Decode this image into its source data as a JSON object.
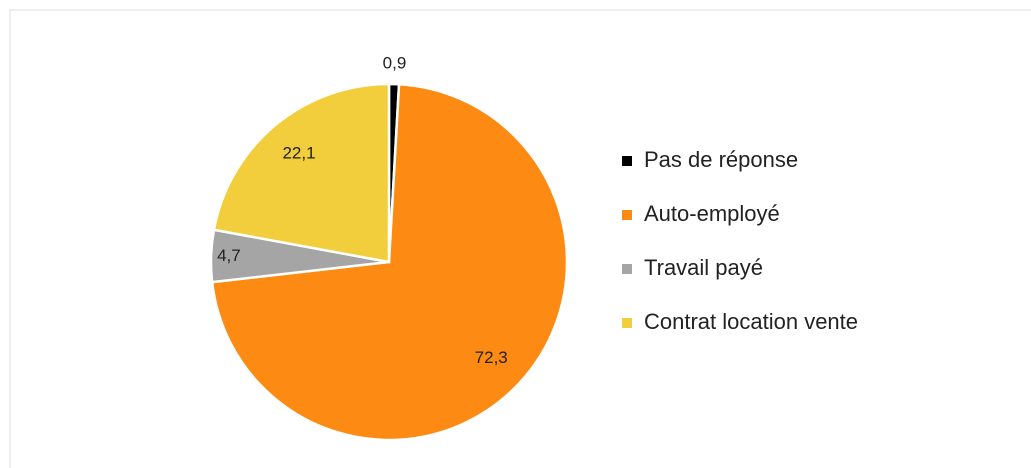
{
  "chart_data": {
    "type": "pie",
    "categories": [
      "Pas de réponse",
      "Auto-employé",
      "Travail payé",
      "Contrat location vente"
    ],
    "values": [
      0.9,
      72.3,
      4.7,
      22.1
    ],
    "value_labels": [
      "0,9",
      "72,3",
      "4,7",
      "22,1"
    ],
    "colors": [
      "#000000",
      "#fd8a12",
      "#a5a5a5",
      "#f2cd3c"
    ]
  }
}
